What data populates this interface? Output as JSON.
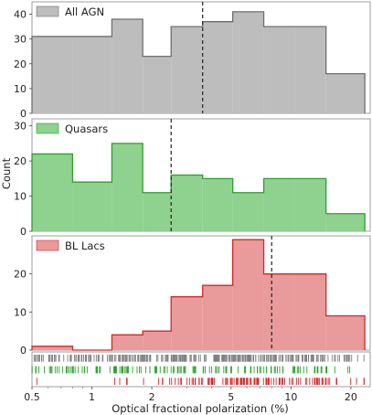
{
  "chart_data": {
    "type": "histogram",
    "xlabel": "Optical fractional polarization (%)",
    "ylabel": "Count",
    "xscale": "log",
    "xlim": [
      0.5,
      25
    ],
    "x_ticks": [
      0.5,
      1,
      2,
      5,
      10,
      20
    ],
    "x_tick_labels": [
      "0.5",
      "1",
      "2",
      "5",
      "10",
      "20"
    ],
    "bin_edges": [
      0.5,
      0.8,
      1.26,
      1.8,
      2.5,
      3.6,
      5.1,
      7.3,
      10.4,
      15,
      23.5
    ],
    "panels": [
      {
        "label": "All AGN",
        "counts": [
          31,
          31,
          38,
          23,
          35,
          37,
          41,
          35,
          35,
          16
        ],
        "fill": "#bdbdbd",
        "edge": "#6e6e6e",
        "median": 3.6,
        "ylim": [
          0,
          45
        ],
        "yticks": [
          0,
          10,
          20,
          30,
          40
        ],
        "legend_position": "top-left"
      },
      {
        "label": "Quasars",
        "counts": [
          22,
          14,
          25,
          11,
          16,
          15,
          11,
          15,
          15,
          5
        ],
        "fill": "#8fd18f",
        "edge": "#2ca02c",
        "median": 2.5,
        "ylim": [
          0,
          32
        ],
        "yticks": [
          0,
          10,
          20,
          30
        ],
        "legend_position": "top-left"
      },
      {
        "label": "BL Lacs",
        "counts": [
          1,
          0,
          4,
          5,
          14,
          17,
          29,
          20,
          20,
          9
        ],
        "fill": "#e99a9a",
        "edge": "#d62728",
        "median": 8.0,
        "ylim": [
          0,
          30
        ],
        "yticks": [
          0,
          10,
          20
        ],
        "legend_position": "top-left"
      }
    ],
    "rug_colors": [
      "#7f7f7f",
      "#2ca02c",
      "#d62728"
    ],
    "rug_note": "Rug plot of individual measurements for all AGN (gray), quasars (green) and BL Lacs (red)"
  }
}
